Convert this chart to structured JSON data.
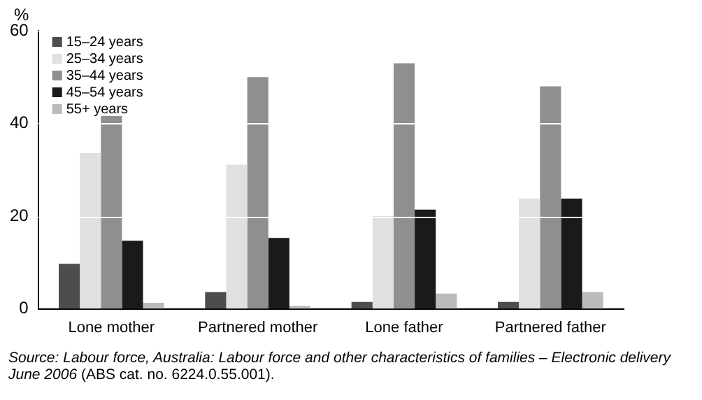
{
  "chart_data": {
    "type": "bar",
    "ylabel": "%",
    "categories": [
      "Lone mother",
      "Partnered mother",
      "Lone father",
      "Partnered father"
    ],
    "series": [
      {
        "name": "15–24 years",
        "color": "#4d4d4d",
        "values": [
          9.7,
          3.6,
          1.5,
          1.5
        ]
      },
      {
        "name": "25–34 years",
        "color": "#e0e0e0",
        "values": [
          33.6,
          31.1,
          20,
          23.8
        ]
      },
      {
        "name": "35–44 years",
        "color": "#8f8f8f",
        "values": [
          41.6,
          50,
          53,
          48
        ]
      },
      {
        "name": "45–54 years",
        "color": "#1a1a1a",
        "values": [
          14.7,
          15.3,
          21.4,
          23.8
        ]
      },
      {
        "name": "55+ years",
        "color": "#bbbbbb",
        "values": [
          1.3,
          0.6,
          3.3,
          3.6
        ]
      }
    ],
    "ylim": [
      0,
      60
    ],
    "yticks": [
      0,
      20,
      40,
      60
    ],
    "grid": "y",
    "legend": "top left",
    "annotations": [
      "Source: Labour force, Australia: Labour force and other characteristics of families – Electronic delivery June 2006",
      "(ABS cat. no. 6224.0.55.001)."
    ]
  }
}
